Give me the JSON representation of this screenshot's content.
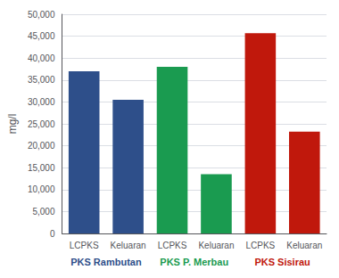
{
  "chart_data": {
    "type": "bar",
    "categories": [
      "LCPKS",
      "Keluaran",
      "LCPKS",
      "Keluaran",
      "LCPKS",
      "Keluaran"
    ],
    "values": [
      37000,
      30500,
      38000,
      13500,
      45700,
      23200
    ],
    "colors": [
      "#2E4F8A",
      "#2E4F8A",
      "#1A9B50",
      "#1A9B50",
      "#C0180C",
      "#C0180C"
    ],
    "ylabel": "mg/l",
    "ylim": [
      0,
      50000
    ],
    "yticks": [
      0,
      5000,
      10000,
      15000,
      20000,
      25000,
      30000,
      35000,
      40000,
      45000,
      50000
    ],
    "grid": true,
    "annotations": [
      {
        "text": "PKS Rambutan",
        "color": "#2E4F8A"
      },
      {
        "text": "PKS P. Merbau",
        "color": "#1A9B50"
      },
      {
        "text": "PKS Sisirau",
        "color": "#C0180C"
      }
    ]
  }
}
